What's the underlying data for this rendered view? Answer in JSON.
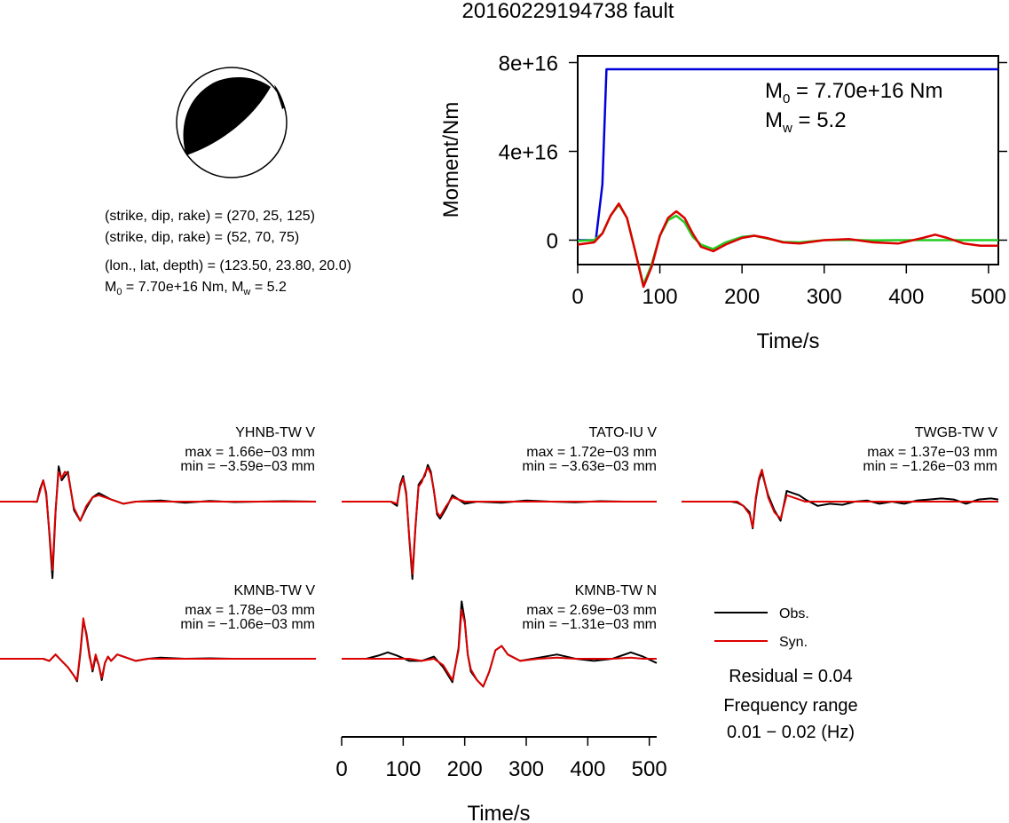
{
  "header": {
    "title": "20160229194738 fault"
  },
  "mechanism": {
    "line1": "(strike, dip, rake) = (270, 25, 125)",
    "line2": "(strike, dip, rake) = (52, 70, 75)",
    "line3": "(lon., lat, depth) = (123.50, 23.80, 20.0)",
    "m0_line": {
      "m": "M",
      "sub0": "0",
      "mid": " = 7.70e+16 Nm, M",
      "subw": "w",
      "end": " = 5.2"
    }
  },
  "chart_data": [
    {
      "type": "line",
      "ylabel": "Moment/Nm",
      "xlabel": "Time/s",
      "xlim": [
        0,
        512
      ],
      "ylim": [
        -1.1e+16,
        8.3e+16
      ],
      "xticks": [
        "0",
        "100",
        "200",
        "300",
        "400",
        "500"
      ],
      "xtick_values": [
        0,
        100,
        200,
        300,
        400,
        500
      ],
      "yticks": [
        "0",
        "4e+16",
        "8e+16"
      ],
      "ytick_values": [
        0,
        4e+16,
        8e+16
      ],
      "annotation": {
        "m0": {
          "m": "M",
          "sub": "0",
          "rest": " = 7.70e+16 Nm"
        },
        "mw": {
          "m": "M",
          "sub": "w",
          "rest": " = 5.2"
        }
      },
      "series": [
        {
          "color": "#0000dd",
          "x": [
            0,
            22,
            30,
            35,
            512
          ],
          "y": [
            0,
            0,
            2.5e+16,
            7.7e+16,
            7.7e+16
          ]
        },
        {
          "color": "#22cc22",
          "x": [
            0,
            20,
            30,
            40,
            50,
            60,
            70,
            80,
            90,
            100,
            110,
            120,
            130,
            140,
            150,
            165,
            180,
            200,
            215,
            230,
            250,
            270,
            300,
            330,
            360,
            390,
            420,
            440,
            460,
            480,
            512
          ],
          "y": [
            -300000000000000.0,
            0,
            3000000000000000.0,
            1.1e+16,
            1.6e+16,
            1e+16,
            -5000000000000000.0,
            -2e+16,
            -1.1e+16,
            2000000000000000.0,
            9000000000000000.0,
            1.1e+16,
            8000000000000000.0,
            1500000000000000.0,
            -2000000000000000.0,
            -4000000000000000.0,
            -1000000000000000.0,
            1500000000000000.0,
            2000000000000000.0,
            800000000000000.0,
            -800000000000000.0,
            -1000000000000000.0,
            0,
            100000000000000.0,
            -100000000000000.0,
            0,
            0,
            0,
            0,
            0,
            0
          ]
        },
        {
          "color": "#dd0000",
          "x": [
            0,
            20,
            30,
            40,
            50,
            60,
            70,
            80,
            90,
            100,
            110,
            120,
            130,
            140,
            150,
            165,
            180,
            200,
            215,
            230,
            250,
            270,
            300,
            330,
            360,
            390,
            420,
            435,
            450,
            470,
            490,
            512
          ],
          "y": [
            -2000000000000000.0,
            -1000000000000000.0,
            3000000000000000.0,
            1.1e+16,
            1.65e+16,
            1e+16,
            -5000000000000000.0,
            -2.1e+16,
            -1.2e+16,
            2000000000000000.0,
            1e+16,
            1.3e+16,
            1e+16,
            3000000000000000.0,
            -3000000000000000.0,
            -5000000000000000.0,
            -2000000000000000.0,
            1000000000000000.0,
            2000000000000000.0,
            1000000000000000.0,
            -1000000000000000.0,
            -1500000000000000.0,
            0,
            500000000000000.0,
            -1000000000000000.0,
            -1500000000000000.0,
            1000000000000000.0,
            2500000000000000.0,
            1000000000000000.0,
            -1500000000000000.0,
            -2500000000000000.0,
            -2500000000000000.0
          ]
        }
      ]
    },
    {
      "type": "line",
      "panels": [
        {
          "title": "YHNB-TW V",
          "max": "max = 1.66e−03 mm",
          "min": "min = −3.59e−03 mm",
          "obs": {
            "x": [
              0,
              50,
              60,
              65,
              70,
              75,
              80,
              85,
              90,
              95,
              100,
              105,
              110,
              120,
              130,
              140,
              150,
              160,
              180,
              200,
              220,
              260,
              300,
              340,
              380,
              420,
              460,
              512
            ],
            "y": [
              0,
              0,
              -0.01,
              0.6,
              1.0,
              0.4,
              -1.5,
              -3.59,
              -0.5,
              1.66,
              1.0,
              1.2,
              1.4,
              -0.4,
              -0.9,
              -0.3,
              0.2,
              0.4,
              0.1,
              -0.1,
              0,
              0.05,
              -0.05,
              0.03,
              -0.02,
              0,
              0.02,
              0
            ]
          },
          "syn": {
            "x": [
              0,
              50,
              60,
              65,
              70,
              75,
              80,
              85,
              90,
              95,
              100,
              105,
              110,
              120,
              130,
              140,
              150,
              160,
              180,
              200,
              220,
              260,
              300,
              340,
              380,
              420,
              460,
              512
            ],
            "y": [
              0,
              0,
              0,
              0.5,
              1.0,
              0.3,
              -1.4,
              -3.2,
              -0.4,
              1.4,
              1.1,
              1.4,
              1.3,
              -0.3,
              -0.9,
              -0.2,
              0.2,
              0.3,
              0.1,
              -0.1,
              0,
              0,
              0,
              0,
              0,
              0,
              0,
              0
            ]
          }
        },
        {
          "title": "TATO-IU V",
          "max": "max = 1.72e−03 mm",
          "min": "min = −3.63e−03 mm",
          "obs": {
            "x": [
              0,
              80,
              90,
              95,
              100,
              105,
              110,
              115,
              120,
              125,
              130,
              135,
              140,
              145,
              150,
              155,
              160,
              170,
              180,
              190,
              200,
              220,
              260,
              300,
              340,
              380,
              420,
              460,
              512
            ],
            "y": [
              0,
              0,
              -0.2,
              0.8,
              1.2,
              0.4,
              -1.8,
              -3.63,
              -1.2,
              0.8,
              1.0,
              1.2,
              1.72,
              1.4,
              0.5,
              -0.6,
              -0.8,
              -0.3,
              0.3,
              0.1,
              -0.1,
              0,
              -0.05,
              0.05,
              0,
              -0.03,
              0.02,
              0,
              0
            ]
          },
          "syn": {
            "x": [
              0,
              80,
              90,
              95,
              100,
              105,
              110,
              115,
              120,
              125,
              130,
              135,
              140,
              145,
              150,
              155,
              160,
              170,
              180,
              190,
              200,
              220,
              260,
              300,
              340,
              380,
              420,
              460,
              512
            ],
            "y": [
              0,
              0,
              -0.1,
              0.7,
              1.1,
              0.3,
              -1.7,
              -3.4,
              -1.1,
              0.7,
              0.9,
              1.3,
              1.6,
              1.3,
              0.5,
              -0.5,
              -0.7,
              -0.2,
              0.2,
              0.1,
              0,
              0,
              0,
              0,
              0,
              0,
              0,
              0,
              0
            ]
          }
        },
        {
          "title": "TWGB-TW V",
          "max": "max = 1.37e−03 mm",
          "min": "min = −1.26e−03 mm",
          "obs": {
            "x": [
              0,
              80,
              90,
              100,
              110,
              115,
              120,
              125,
              130,
              140,
              150,
              160,
              170,
              180,
              190,
              200,
              220,
              240,
              260,
              280,
              300,
              320,
              340,
              360,
              380,
              400,
              420,
              440,
              460,
              480,
              500,
              512
            ],
            "y": [
              0,
              0,
              -0.05,
              -0.2,
              -0.5,
              -1.26,
              0.1,
              1.0,
              1.37,
              0.3,
              -0.4,
              -0.9,
              0.5,
              0.4,
              0.3,
              0.1,
              -0.2,
              -0.1,
              -0.15,
              0,
              0.05,
              -0.1,
              0,
              -0.1,
              0.05,
              0.1,
              0.15,
              0.1,
              -0.1,
              0.1,
              0.15,
              0.1
            ]
          },
          "syn": {
            "x": [
              0,
              80,
              90,
              100,
              110,
              115,
              120,
              125,
              130,
              140,
              150,
              160,
              170,
              180,
              190,
              200,
              220,
              240,
              260,
              280,
              300,
              320,
              340,
              360,
              380,
              400,
              420,
              440,
              460,
              480,
              500,
              512
            ],
            "y": [
              0,
              0,
              0,
              -0.2,
              -0.6,
              -1.2,
              0.2,
              1.1,
              1.5,
              0.2,
              -0.5,
              -0.8,
              0.3,
              0.2,
              0.1,
              0,
              0,
              0,
              0,
              0,
              0,
              0,
              0,
              0,
              0,
              0,
              0,
              0,
              0,
              0,
              0,
              0
            ]
          }
        },
        {
          "title": "KMNB-TW V",
          "max": "max = 1.78e−03 mm",
          "min": "min = −1.06e−03 mm",
          "obs": {
            "x": [
              0,
              60,
              70,
              80,
              90,
              100,
              110,
              120,
              125,
              130,
              135,
              140,
              145,
              150,
              155,
              160,
              165,
              170,
              175,
              180,
              190,
              200,
              220,
              240,
              260,
              300,
              340,
              380,
              420,
              460,
              512
            ],
            "y": [
              0,
              0,
              0,
              -0.1,
              0.2,
              -0.1,
              -0.4,
              -0.8,
              -1.06,
              0.2,
              1.78,
              1.2,
              0.2,
              -0.6,
              0.1,
              -0.3,
              -1.0,
              -0.2,
              0.1,
              -0.1,
              0.2,
              0.1,
              -0.1,
              0,
              0.05,
              0,
              0.02,
              0,
              0,
              0,
              0
            ]
          },
          "syn": {
            "x": [
              0,
              60,
              70,
              80,
              90,
              100,
              110,
              120,
              125,
              130,
              135,
              140,
              145,
              150,
              155,
              160,
              165,
              170,
              175,
              180,
              190,
              200,
              220,
              240,
              260,
              300,
              340,
              380,
              420,
              460,
              512
            ],
            "y": [
              0,
              0,
              0,
              -0.1,
              0.2,
              -0.1,
              -0.4,
              -0.8,
              -1.0,
              0.3,
              1.9,
              1.1,
              0.1,
              -0.5,
              0.2,
              -0.3,
              -0.9,
              -0.2,
              0.1,
              -0.1,
              0.2,
              0.1,
              -0.1,
              0,
              0,
              0,
              0,
              0,
              0,
              0,
              0
            ]
          }
        },
        {
          "title": "KMNB-TW N",
          "max": "max = 2.69e−03 mm",
          "min": "min = −1.31e−03 mm",
          "obs": {
            "x": [
              0,
              40,
              60,
              75,
              90,
              110,
              130,
              150,
              165,
              180,
              190,
              195,
              200,
              205,
              210,
              220,
              230,
              240,
              250,
              260,
              270,
              290,
              320,
              350,
              380,
              410,
              440,
              470,
              490,
              512
            ],
            "y": [
              0,
              0,
              0.15,
              0.3,
              0.15,
              -0.1,
              -0.1,
              0.1,
              -0.4,
              -1.1,
              0.5,
              2.69,
              1.8,
              0.2,
              -0.6,
              -1.0,
              -1.31,
              -0.6,
              0.4,
              0.6,
              0.2,
              -0.1,
              0.05,
              0.2,
              0,
              -0.1,
              0,
              0.3,
              0.1,
              -0.2
            ]
          },
          "syn": {
            "x": [
              0,
              40,
              60,
              75,
              90,
              110,
              130,
              150,
              165,
              180,
              190,
              195,
              200,
              205,
              210,
              220,
              230,
              240,
              250,
              260,
              270,
              290,
              320,
              350,
              380,
              410,
              440,
              470,
              490,
              512
            ],
            "y": [
              0,
              0,
              0,
              0,
              0,
              0,
              -0.1,
              0,
              -0.3,
              -1.0,
              0.4,
              2.3,
              1.7,
              0.2,
              -0.5,
              -1.0,
              -1.3,
              -0.6,
              0.4,
              0.6,
              0.2,
              -0.1,
              0,
              0.05,
              0,
              0,
              0,
              0.05,
              0,
              0
            ]
          }
        }
      ],
      "xlabel": "Time/s",
      "xticks": [
        "0",
        "100",
        "200",
        "300",
        "400",
        "500"
      ],
      "xtick_values": [
        0,
        100,
        200,
        300,
        400,
        500
      ],
      "xlim": [
        0,
        512
      ]
    }
  ],
  "legend": {
    "obs_label": "Obs.",
    "syn_label": "Syn.",
    "obs_color": "#000000",
    "syn_color": "#dd0000"
  },
  "stats": {
    "residual": "Residual = 0.04",
    "freq_title": "Frequency range",
    "freq_value": "0.01 − 0.02 (Hz)"
  }
}
